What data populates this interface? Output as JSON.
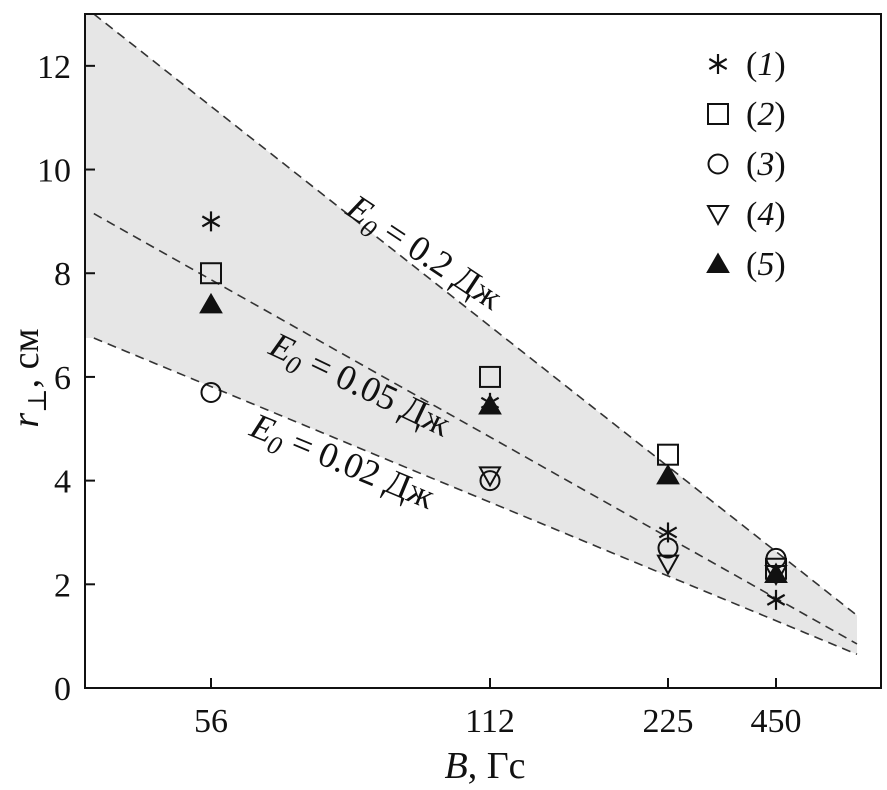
{
  "chart_data": {
    "type": "scatter",
    "title": "",
    "xlabel": {
      "var": "B",
      "unit": ", Гс"
    },
    "ylabel": {
      "var": "r",
      "sub": "⊥",
      "unit": ", см"
    },
    "x_categories": [
      "56",
      "112",
      "225",
      "450"
    ],
    "ylim": [
      0,
      13
    ],
    "yticks": [
      "0",
      "2",
      "4",
      "6",
      "8",
      "10",
      "12"
    ],
    "ytick_values": [
      0,
      2,
      4,
      6,
      8,
      10,
      12
    ],
    "grid": false,
    "legend_position": "top-right",
    "series": [
      {
        "name": "1",
        "marker": "asterisk",
        "values": [
          9.0,
          5.5,
          3.0,
          1.7
        ]
      },
      {
        "name": "2",
        "marker": "square",
        "values": [
          8.0,
          6.0,
          4.5,
          2.3
        ]
      },
      {
        "name": "3",
        "marker": "circle",
        "values": [
          5.7,
          4.0,
          2.7,
          2.5
        ]
      },
      {
        "name": "4",
        "marker": "triangle-down",
        "values": [
          null,
          4.1,
          2.4,
          2.2
        ]
      },
      {
        "name": "5",
        "marker": "triangle-up-filled",
        "values": [
          7.4,
          5.45,
          4.1,
          2.2
        ]
      }
    ],
    "reference_lines": [
      {
        "sym": "E",
        "sub": "0",
        "rest": " = 0.2 Дж",
        "start": [
          -0.42,
          13.0
        ],
        "end": [
          3.75,
          1.4
        ]
      },
      {
        "sym": "E",
        "sub": "0",
        "rest": " = 0.05 Дж",
        "start": [
          -0.42,
          9.15
        ],
        "end": [
          3.75,
          0.85
        ]
      },
      {
        "sym": "E",
        "sub": "0",
        "rest": " = 0.02 Дж",
        "start": [
          -0.42,
          6.75
        ],
        "end": [
          3.75,
          0.65
        ]
      }
    ],
    "shaded_band": "between E0 = 0.2 Дж and E0 = 0.02 Дж",
    "colors": {
      "band": "#e6e6e6",
      "ink": "#111111"
    }
  }
}
